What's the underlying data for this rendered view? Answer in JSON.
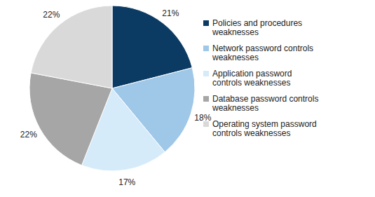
{
  "chart_data": {
    "type": "pie",
    "categories": [
      "Policies and procedures weaknesses",
      "Network password controls weaknesses",
      "Application password controls weaknesses",
      "Database password controls weaknesses",
      "Operating system password controls weaknesses"
    ],
    "values": [
      21,
      18,
      17,
      22,
      22
    ],
    "value_labels": [
      "21%",
      "18%",
      "17%",
      "22%",
      "22%"
    ],
    "colors": [
      "#0b3a63",
      "#9ec7e8",
      "#d5ebfa",
      "#a6a6a6",
      "#d9d9d9"
    ],
    "data_labels": true,
    "legend": "right"
  }
}
